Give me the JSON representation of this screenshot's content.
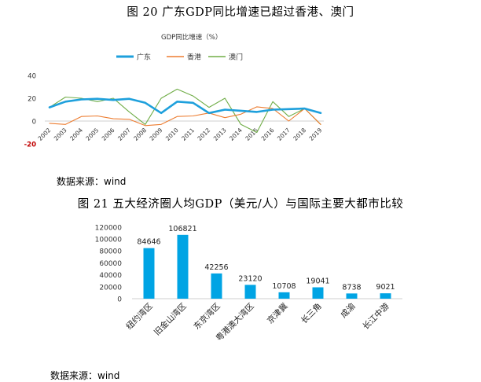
{
  "figure1": {
    "title": "图 20 广东GDP同比增速已超过香港、澳门",
    "source": "数据来源：wind"
  },
  "figure2": {
    "title": "图 21 五大经济圈人均GDP（美元/人）与国际主要大都市比较",
    "source": "数据来源：wind"
  },
  "colors": {
    "guangdong": "#1ea0dc",
    "hongkong": "#ed7d31",
    "macau": "#70ad47",
    "bar": "#00a4e4"
  },
  "chart_data": [
    {
      "type": "line",
      "title": "",
      "subtitle": "GDP同比增速（%）",
      "xlabel": "",
      "ylabel": "",
      "x": [
        "2002",
        "2003",
        "2004",
        "2005",
        "2006",
        "2007",
        "2008",
        "2009",
        "2010",
        "2011",
        "2012",
        "2013",
        "2014",
        "2015",
        "2016",
        "2017",
        "2018",
        "2019"
      ],
      "ylim": [
        -20,
        40
      ],
      "yticks": [
        -20,
        0,
        20,
        40
      ],
      "legend_position": "top",
      "grid": false,
      "series": [
        {
          "name": "广东",
          "values": [
            12,
            17,
            19,
            19.5,
            18.5,
            19.5,
            16,
            7,
            17,
            16,
            7,
            10,
            9,
            8,
            10,
            10.5,
            11,
            7
          ]
        },
        {
          "name": "香港",
          "values": [
            -2,
            -3,
            4,
            4.5,
            2,
            1.5,
            -4,
            -3,
            4,
            4.5,
            7,
            3,
            6,
            12.5,
            11,
            0,
            11,
            -3
          ]
        },
        {
          "name": "澳门",
          "values": [
            12,
            21,
            20,
            17,
            20,
            8,
            -3,
            20,
            28,
            22,
            12,
            20,
            -3,
            -10,
            17,
            4,
            11,
            -3
          ]
        }
      ]
    },
    {
      "type": "bar",
      "title": "",
      "xlabel": "",
      "ylabel": "",
      "categories": [
        "纽约湾区",
        "旧金山湾区",
        "东京湾区",
        "粤港澳大湾区",
        "京津冀",
        "长三角",
        "成渝",
        "长江中游"
      ],
      "values": [
        84646,
        106821,
        42256,
        23120,
        10708,
        19041,
        8738,
        9021
      ],
      "ylim": [
        0,
        120000
      ],
      "yticks": [
        0,
        20000,
        40000,
        60000,
        80000,
        100000,
        120000
      ],
      "grid": false
    }
  ]
}
